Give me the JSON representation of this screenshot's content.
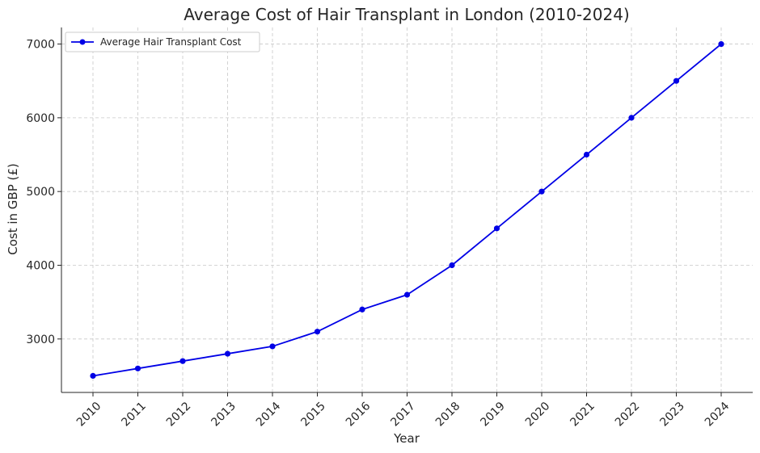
{
  "chart_data": {
    "type": "line",
    "title": "Average Cost of Hair Transplant in London (2010-2024)",
    "xlabel": "Year",
    "ylabel": "Cost in GBP (£)",
    "x": [
      "2010",
      "2011",
      "2012",
      "2013",
      "2014",
      "2015",
      "2016",
      "2017",
      "2018",
      "2019",
      "2020",
      "2021",
      "2022",
      "2023",
      "2024"
    ],
    "series": [
      {
        "name": "Average Hair Transplant Cost",
        "color": "#0000e6",
        "marker": "circle",
        "values": [
          2500,
          2600,
          2700,
          2800,
          2900,
          3100,
          3400,
          3600,
          4000,
          4500,
          5000,
          5500,
          6000,
          6500,
          7000
        ]
      }
    ],
    "ylim": [
      2275,
      7225
    ],
    "yticks": [
      3000,
      4000,
      5000,
      6000,
      7000
    ],
    "grid": true,
    "legend": "top-left"
  }
}
